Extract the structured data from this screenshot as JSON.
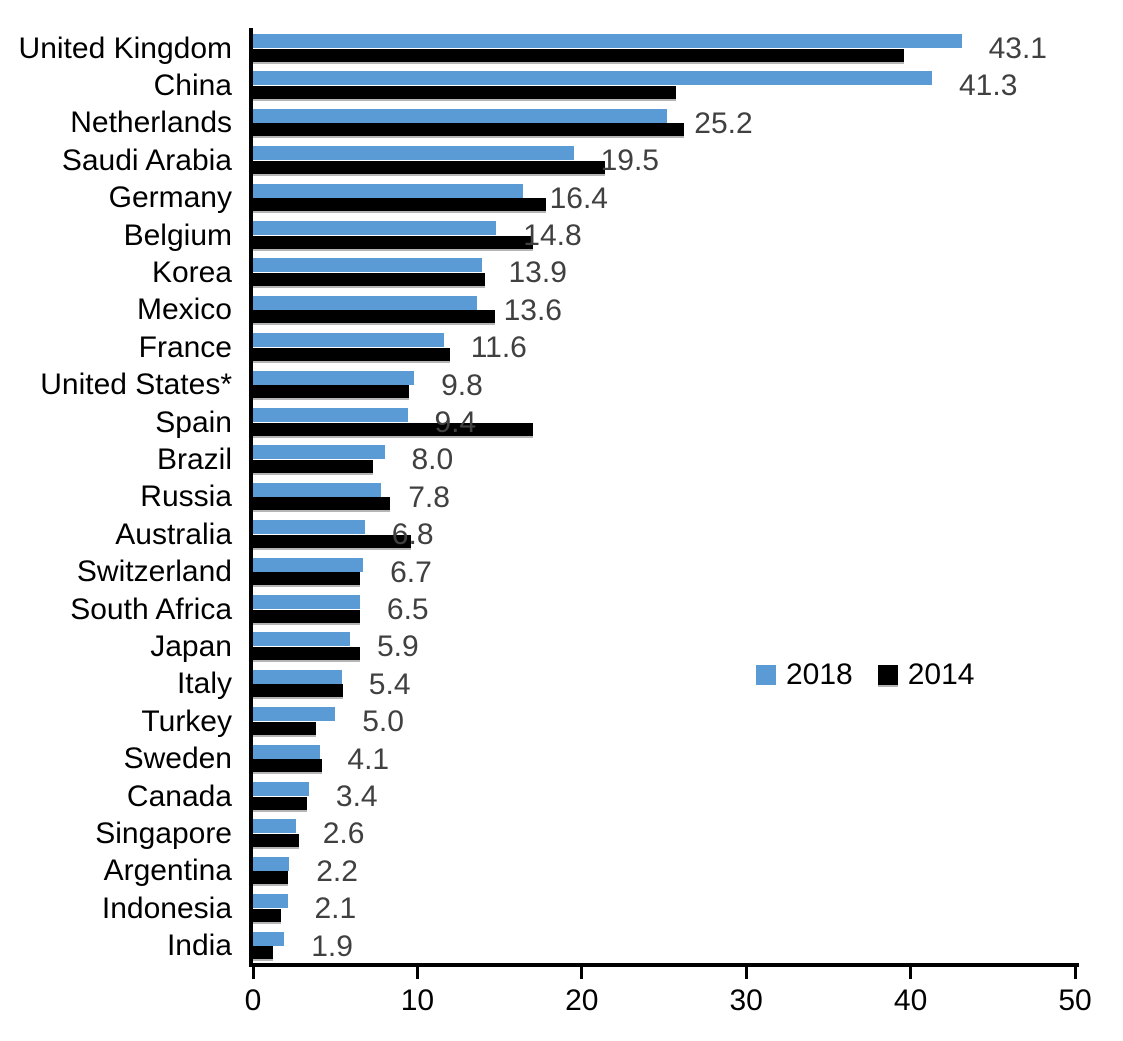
{
  "chart_data": {
    "type": "bar",
    "orientation": "horizontal",
    "title": "",
    "xlabel": "",
    "ylabel": "",
    "xlim": [
      0,
      50
    ],
    "xticks": [
      0,
      10,
      20,
      30,
      40,
      50
    ],
    "grid": false,
    "legend_position": "center-right",
    "categories": [
      "United Kingdom",
      "China",
      "Netherlands",
      "Saudi Arabia",
      "Germany",
      "Belgium",
      "Korea",
      "Mexico",
      "France",
      "United States*",
      "Spain",
      "Brazil",
      "Russia",
      "Australia",
      "Switzerland",
      "South Africa",
      "Japan",
      "Italy",
      "Turkey",
      "Sweden",
      "Canada",
      "Singapore",
      "Argentina",
      "Indonesia",
      "India"
    ],
    "series": [
      {
        "name": "2018",
        "color": "#5B9BD5",
        "values": [
          43.1,
          41.3,
          25.2,
          19.5,
          16.4,
          14.8,
          13.9,
          13.6,
          11.6,
          9.8,
          9.4,
          8.0,
          7.8,
          6.8,
          6.7,
          6.5,
          5.9,
          5.4,
          5.0,
          4.1,
          3.4,
          2.6,
          2.2,
          2.1,
          1.9
        ]
      },
      {
        "name": "2014",
        "color": "#000000",
        "values": [
          39.6,
          25.7,
          26.2,
          21.4,
          17.8,
          17.0,
          14.1,
          14.7,
          12.0,
          9.5,
          17.0,
          7.3,
          8.3,
          9.6,
          6.5,
          6.5,
          6.5,
          5.5,
          3.8,
          4.2,
          3.3,
          2.8,
          2.1,
          1.7,
          1.2
        ]
      }
    ],
    "data_labels": {
      "series": "2018",
      "color": "#404040",
      "values": [
        "43.1",
        "41.3",
        "25.2",
        "19.5",
        "16.4",
        "14.8",
        "13.9",
        "13.6",
        "11.6",
        "9.8",
        "9.4",
        "8.0",
        "7.8",
        "6.8",
        "6.7",
        "6.5",
        "5.9",
        "5.4",
        "5.0",
        "4.1",
        "3.4",
        "2.6",
        "2.2",
        "2.1",
        "1.9"
      ]
    },
    "colors": {
      "background": "#FFFFFF",
      "axis": "#000000",
      "tick_label": "#000000",
      "category_label": "#000000"
    }
  }
}
